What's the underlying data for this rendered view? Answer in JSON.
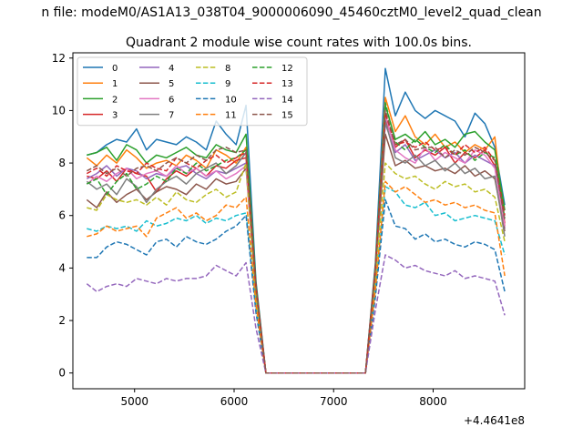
{
  "figure": {
    "suptitle": "n file: modeM0/AS1A13_038T04_9000006090_45460cztM0_level2_quad_clean",
    "title": "Quadrant 2 module wise count rates with 100.0s bins.",
    "x_offset_label": "+4.4641e8"
  },
  "chart_data": {
    "type": "line",
    "title": "Quadrant 2 module wise count rates with 100.0s bins.",
    "xlabel": "",
    "ylabel": "",
    "x_offset": "+4.4641e8",
    "xlim": [
      4380,
      8920
    ],
    "ylim": [
      -0.6,
      12.2
    ],
    "xticks": [
      5000,
      6000,
      7000,
      8000
    ],
    "yticks": [
      0,
      2,
      4,
      6,
      8,
      10,
      12
    ],
    "grid": false,
    "legend": {
      "position": "top-left",
      "columns": 4
    },
    "x": [
      4520,
      4620,
      4720,
      4820,
      4920,
      5020,
      5120,
      5220,
      5320,
      5420,
      5520,
      5620,
      5720,
      5820,
      5920,
      6020,
      6120,
      6220,
      6320,
      6420,
      6520,
      6620,
      6720,
      6820,
      6920,
      7020,
      7120,
      7220,
      7320,
      7420,
      7520,
      7620,
      7720,
      7820,
      7920,
      8020,
      8120,
      8220,
      8320,
      8420,
      8520,
      8620,
      8720
    ],
    "series": [
      {
        "name": "0",
        "color": "#1f77b4",
        "style": "solid",
        "values": [
          8.3,
          8.4,
          8.7,
          8.9,
          8.8,
          9.3,
          8.5,
          8.9,
          8.8,
          8.7,
          9.0,
          8.8,
          8.5,
          9.6,
          9.1,
          8.7,
          10.2,
          3.5,
          0,
          0,
          0,
          0,
          0,
          0,
          0,
          0,
          0,
          0,
          0,
          4.2,
          11.6,
          9.8,
          10.7,
          10.0,
          9.7,
          10.0,
          9.8,
          9.6,
          9.0,
          9.9,
          9.5,
          8.6,
          6.4
        ]
      },
      {
        "name": "1",
        "color": "#ff7f0e",
        "style": "solid",
        "values": [
          8.2,
          7.9,
          8.3,
          8.0,
          8.5,
          8.2,
          7.8,
          8.0,
          8.1,
          7.9,
          8.3,
          8.1,
          7.8,
          8.5,
          8.3,
          8.0,
          8.6,
          3.2,
          0,
          0,
          0,
          0,
          0,
          0,
          0,
          0,
          0,
          0,
          0,
          4.0,
          10.5,
          9.2,
          9.8,
          9.0,
          8.7,
          9.1,
          8.6,
          8.8,
          8.4,
          8.7,
          8.5,
          9.0,
          5.6
        ]
      },
      {
        "name": "2",
        "color": "#2ca02c",
        "style": "solid",
        "values": [
          8.3,
          8.4,
          8.6,
          8.1,
          8.7,
          8.5,
          8.0,
          8.3,
          8.2,
          8.4,
          8.6,
          8.3,
          8.2,
          8.7,
          8.5,
          8.4,
          9.1,
          3.4,
          0,
          0,
          0,
          0,
          0,
          0,
          0,
          0,
          0,
          0,
          0,
          4.1,
          10.2,
          8.9,
          9.1,
          8.8,
          9.2,
          8.7,
          8.9,
          8.6,
          9.1,
          9.2,
          8.8,
          8.5,
          6.2
        ]
      },
      {
        "name": "3",
        "color": "#d62728",
        "style": "solid",
        "values": [
          7.5,
          7.4,
          7.7,
          7.3,
          7.8,
          7.6,
          7.5,
          6.9,
          7.4,
          7.7,
          7.5,
          7.8,
          7.5,
          7.9,
          7.8,
          8.1,
          8.2,
          3.1,
          0,
          0,
          0,
          0,
          0,
          0,
          0,
          0,
          0,
          0,
          0,
          3.8,
          9.7,
          8.6,
          8.9,
          8.2,
          8.5,
          8.3,
          8.6,
          8.0,
          8.4,
          8.2,
          8.5,
          7.9,
          5.7
        ]
      },
      {
        "name": "4",
        "color": "#9467bd",
        "style": "solid",
        "values": [
          7.4,
          7.6,
          7.9,
          7.5,
          7.8,
          7.7,
          7.4,
          7.6,
          7.5,
          7.8,
          7.9,
          7.6,
          7.4,
          7.7,
          7.6,
          7.8,
          8.0,
          3.0,
          0,
          0,
          0,
          0,
          0,
          0,
          0,
          0,
          0,
          0,
          0,
          3.9,
          9.5,
          8.4,
          8.7,
          8.1,
          8.3,
          8.5,
          8.2,
          8.4,
          8.0,
          8.3,
          8.1,
          7.9,
          5.5
        ]
      },
      {
        "name": "5",
        "color": "#8c564b",
        "style": "solid",
        "values": [
          6.6,
          6.3,
          6.9,
          6.5,
          6.8,
          7.0,
          6.6,
          6.9,
          7.1,
          7.0,
          6.8,
          7.2,
          7.0,
          7.4,
          7.2,
          7.3,
          7.8,
          2.9,
          0,
          0,
          0,
          0,
          0,
          0,
          0,
          0,
          0,
          0,
          0,
          3.7,
          9.1,
          7.9,
          8.1,
          7.8,
          7.9,
          7.7,
          7.8,
          7.6,
          7.9,
          7.5,
          7.7,
          7.4,
          5.4
        ]
      },
      {
        "name": "6",
        "color": "#e377c2",
        "style": "solid",
        "values": [
          7.2,
          7.5,
          7.3,
          7.6,
          7.8,
          7.4,
          7.6,
          7.7,
          7.5,
          7.9,
          7.6,
          7.8,
          7.5,
          7.7,
          7.4,
          7.6,
          7.9,
          3.0,
          0,
          0,
          0,
          0,
          0,
          0,
          0,
          0,
          0,
          0,
          0,
          3.8,
          9.8,
          8.5,
          8.2,
          8.0,
          8.6,
          8.1,
          8.4,
          8.2,
          8.0,
          8.5,
          8.3,
          7.8,
          5.6
        ]
      },
      {
        "name": "7",
        "color": "#7f7f7f",
        "style": "solid",
        "values": [
          7.3,
          7.0,
          7.2,
          6.8,
          7.4,
          7.1,
          6.5,
          7.0,
          7.3,
          7.5,
          7.2,
          7.6,
          7.8,
          8.0,
          7.6,
          7.9,
          8.4,
          3.1,
          0,
          0,
          0,
          0,
          0,
          0,
          0,
          0,
          0,
          0,
          0,
          3.9,
          9.6,
          8.2,
          8.0,
          8.3,
          7.9,
          8.1,
          7.7,
          8.0,
          7.6,
          7.8,
          7.4,
          7.5,
          5.2
        ]
      },
      {
        "name": "8",
        "color": "#bcbd22",
        "style": "dashed",
        "values": [
          6.3,
          6.2,
          6.8,
          6.6,
          6.5,
          6.6,
          6.4,
          6.7,
          6.4,
          6.9,
          6.6,
          6.5,
          6.8,
          7.0,
          6.7,
          6.9,
          8.0,
          2.9,
          0,
          0,
          0,
          0,
          0,
          0,
          0,
          0,
          0,
          0,
          0,
          3.6,
          8.0,
          7.6,
          7.4,
          7.5,
          7.2,
          7.0,
          7.3,
          7.1,
          7.2,
          6.9,
          7.0,
          6.7,
          5.0
        ]
      },
      {
        "name": "9",
        "color": "#17becf",
        "style": "dashed",
        "values": [
          5.5,
          5.4,
          5.6,
          5.5,
          5.6,
          5.4,
          5.8,
          5.6,
          5.7,
          5.9,
          5.8,
          6.0,
          5.7,
          5.9,
          5.8,
          6.0,
          6.1,
          2.5,
          0,
          0,
          0,
          0,
          0,
          0,
          0,
          0,
          0,
          0,
          0,
          3.1,
          7.1,
          6.9,
          6.4,
          6.3,
          6.5,
          6.0,
          6.1,
          5.8,
          5.9,
          6.0,
          5.9,
          5.8,
          4.5
        ]
      },
      {
        "name": "10",
        "color": "#1f77b4",
        "style": "dashed",
        "values": [
          4.4,
          4.4,
          4.8,
          5.0,
          4.9,
          4.7,
          4.5,
          5.0,
          5.1,
          4.8,
          5.2,
          5.0,
          4.9,
          5.1,
          5.4,
          5.6,
          6.0,
          2.3,
          0,
          0,
          0,
          0,
          0,
          0,
          0,
          0,
          0,
          0,
          0,
          2.9,
          6.6,
          5.6,
          5.5,
          5.1,
          5.3,
          5.0,
          5.1,
          4.9,
          4.8,
          5.0,
          4.9,
          4.7,
          3.1
        ]
      },
      {
        "name": "11",
        "color": "#ff7f0e",
        "style": "dashed",
        "values": [
          5.2,
          5.3,
          5.6,
          5.4,
          5.5,
          5.6,
          5.2,
          5.9,
          6.1,
          6.3,
          5.9,
          6.1,
          5.8,
          6.0,
          6.4,
          6.3,
          6.7,
          2.6,
          0,
          0,
          0,
          0,
          0,
          0,
          0,
          0,
          0,
          0,
          0,
          3.2,
          7.3,
          6.9,
          7.1,
          6.8,
          6.5,
          6.6,
          6.4,
          6.5,
          6.3,
          6.4,
          6.2,
          6.1,
          3.7
        ]
      },
      {
        "name": "12",
        "color": "#2ca02c",
        "style": "dashed",
        "values": [
          7.2,
          7.4,
          6.8,
          7.3,
          7.6,
          7.0,
          7.2,
          7.5,
          7.3,
          7.8,
          7.6,
          8.0,
          7.7,
          7.9,
          8.1,
          8.2,
          8.5,
          3.2,
          0,
          0,
          0,
          0,
          0,
          0,
          0,
          0,
          0,
          0,
          0,
          3.9,
          10.3,
          8.8,
          8.5,
          8.9,
          8.6,
          8.4,
          8.7,
          8.3,
          8.5,
          8.1,
          8.4,
          8.2,
          5.9
        ]
      },
      {
        "name": "13",
        "color": "#d62728",
        "style": "dashed",
        "values": [
          7.6,
          7.8,
          7.5,
          7.9,
          7.7,
          7.6,
          8.0,
          7.8,
          7.7,
          8.2,
          8.0,
          7.8,
          8.1,
          8.3,
          8.0,
          8.2,
          8.4,
          3.3,
          0,
          0,
          0,
          0,
          0,
          0,
          0,
          0,
          0,
          0,
          0,
          4.0,
          9.9,
          8.7,
          8.8,
          8.6,
          8.8,
          8.5,
          8.6,
          8.3,
          8.7,
          8.4,
          8.6,
          8.1,
          6.0
        ]
      },
      {
        "name": "14",
        "color": "#9467bd",
        "style": "dashed",
        "values": [
          3.4,
          3.1,
          3.3,
          3.4,
          3.3,
          3.6,
          3.5,
          3.4,
          3.6,
          3.5,
          3.6,
          3.6,
          3.7,
          4.1,
          3.9,
          3.7,
          4.2,
          1.7,
          0,
          0,
          0,
          0,
          0,
          0,
          0,
          0,
          0,
          0,
          0,
          2.4,
          4.5,
          4.3,
          4.0,
          4.1,
          3.9,
          3.8,
          3.7,
          3.9,
          3.6,
          3.7,
          3.6,
          3.5,
          2.2
        ]
      },
      {
        "name": "15",
        "color": "#8c564b",
        "style": "dashed",
        "values": [
          7.7,
          7.9,
          7.6,
          7.8,
          7.5,
          7.8,
          7.9,
          7.7,
          8.0,
          8.2,
          8.0,
          8.3,
          8.1,
          8.5,
          8.6,
          8.4,
          8.5,
          3.3,
          0,
          0,
          0,
          0,
          0,
          0,
          0,
          0,
          0,
          0,
          0,
          4.0,
          10.0,
          8.7,
          8.9,
          8.5,
          8.6,
          8.6,
          8.2,
          8.5,
          8.3,
          8.6,
          8.4,
          8.1,
          5.8
        ]
      }
    ]
  }
}
